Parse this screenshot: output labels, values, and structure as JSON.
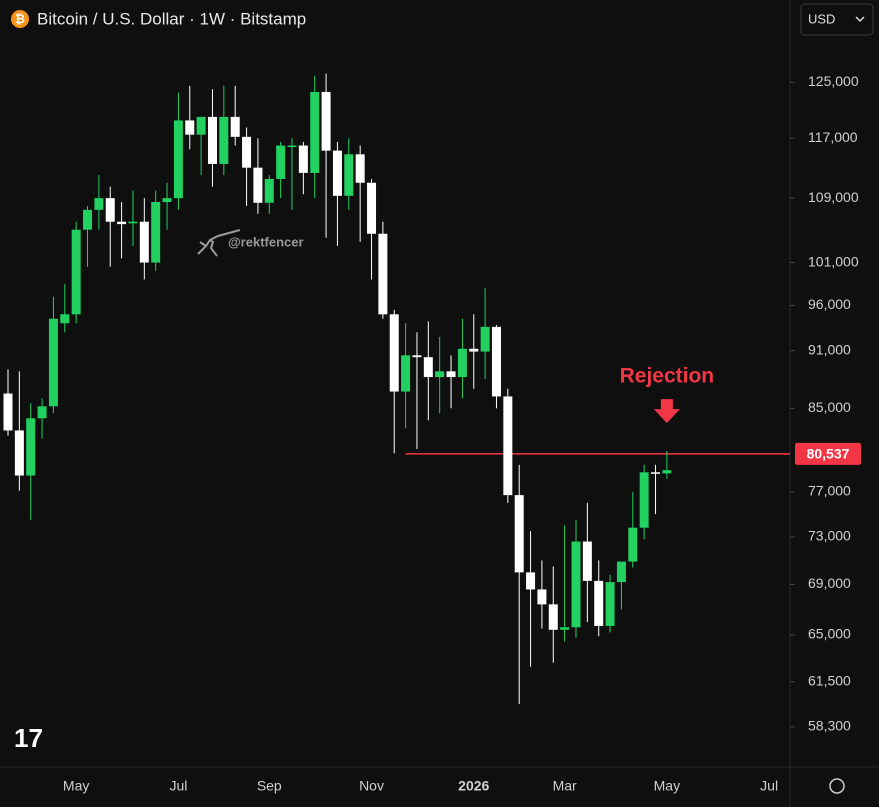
{
  "chart_data": {
    "type": "candlestick",
    "title": "Bitcoin / U.S. Dollar · 1W · Bitstamp",
    "currency": "USD",
    "watermark": "@rektfencer",
    "categories": [
      null,
      null,
      null,
      null,
      null,
      null,
      "May",
      null,
      null,
      null,
      null,
      null,
      null,
      null,
      null,
      "Jul",
      null,
      null,
      null,
      null,
      null,
      null,
      null,
      "Sep",
      null,
      null,
      null,
      null,
      null,
      null,
      null,
      null,
      "Nov",
      null,
      null,
      null,
      null,
      null,
      null,
      null,
      null,
      "2026",
      null,
      null,
      null,
      null,
      null,
      null,
      null,
      "Mar",
      null,
      null,
      null,
      null,
      null,
      null,
      null,
      null,
      "May",
      null,
      null,
      null,
      null,
      null,
      null,
      null,
      null,
      "Jul"
    ],
    "open": [
      86500,
      82800,
      78500,
      84000,
      85200,
      94000,
      95000,
      105000,
      107500,
      109000,
      106000,
      105800,
      106000,
      101000,
      108500,
      109000,
      119500,
      117500,
      120000,
      113500,
      120000,
      117200,
      113000,
      108400,
      111500,
      115800,
      116000,
      112300,
      123600,
      115300,
      109300,
      114800,
      111000,
      104500,
      95000,
      86700,
      90500,
      90300,
      88200,
      88800,
      88200,
      91200,
      90900,
      93600,
      86200,
      76700,
      70000,
      68600,
      67400,
      65400,
      65600,
      72600,
      69300,
      65700,
      69200,
      70900,
      73800,
      78800,
      78700,
      null,
      null,
      null,
      null,
      null,
      null,
      null,
      null,
      null
    ],
    "high": [
      89000,
      88800,
      85500,
      86000,
      97000,
      98500,
      106000,
      108000,
      112000,
      110500,
      108500,
      110000,
      109000,
      110000,
      111000,
      123500,
      124500,
      120000,
      124000,
      124500,
      124500,
      118500,
      117000,
      112000,
      116500,
      117000,
      116500,
      126000,
      126300,
      116500,
      117000,
      116000,
      111500,
      106000,
      95500,
      94000,
      93000,
      94200,
      92500,
      90500,
      94500,
      95000,
      98000,
      93800,
      87000,
      79500,
      73500,
      71000,
      70500,
      74000,
      74500,
      76000,
      71000,
      69800,
      70500,
      77000,
      79500,
      79500,
      80800,
      null,
      null,
      null,
      null,
      null,
      null,
      null,
      null,
      null
    ],
    "low": [
      82300,
      77100,
      74500,
      82000,
      84500,
      93000,
      94000,
      100500,
      105000,
      100500,
      101500,
      103000,
      99000,
      100000,
      105000,
      107500,
      115500,
      112000,
      110500,
      112000,
      116000,
      108000,
      107000,
      107000,
      109000,
      107500,
      109500,
      109000,
      104000,
      103000,
      107500,
      103500,
      99000,
      94500,
      80600,
      83000,
      81000,
      83800,
      84500,
      85000,
      86000,
      87000,
      88000,
      85000,
      76000,
      59900,
      62600,
      65500,
      62900,
      64500,
      64800,
      66000,
      64900,
      65200,
      67000,
      70400,
      72800,
      75000,
      78200,
      null,
      null,
      null,
      null,
      null,
      null,
      null,
      null,
      null
    ],
    "close": [
      82800,
      78500,
      84000,
      85200,
      94500,
      95000,
      105000,
      107500,
      109000,
      106000,
      105700,
      106000,
      101000,
      108500,
      109000,
      119500,
      117500,
      120000,
      113500,
      120000,
      117200,
      113000,
      108400,
      111500,
      116000,
      116000,
      112300,
      123600,
      115300,
      109300,
      114800,
      111000,
      104500,
      95000,
      86700,
      90500,
      90300,
      88200,
      88800,
      88200,
      91200,
      90900,
      93600,
      86200,
      76700,
      70000,
      68600,
      67400,
      65400,
      65600,
      72600,
      69300,
      65700,
      69200,
      70900,
      73800,
      78800,
      78700,
      79000,
      null,
      null,
      null,
      null,
      null,
      null,
      null,
      null,
      null
    ],
    "up_color": "#22d160",
    "down_color": "#ffffff",
    "log_scale": true,
    "ylim": [
      55600,
      137800
    ],
    "yticks": [
      {
        "value": 58300,
        "label": "58,300"
      },
      {
        "value": 61500,
        "label": "61,500"
      },
      {
        "value": 65000,
        "label": "65,000"
      },
      {
        "value": 69000,
        "label": "69,000"
      },
      {
        "value": 73000,
        "label": "73,000"
      },
      {
        "value": 77000,
        "label": "77,000"
      },
      {
        "value": 85000,
        "label": "85,000"
      },
      {
        "value": 91000,
        "label": "91,000"
      },
      {
        "value": 96000,
        "label": "96,000"
      },
      {
        "value": 101000,
        "label": "101,000"
      },
      {
        "value": 109000,
        "label": "109,000"
      },
      {
        "value": 117000,
        "label": "117,000"
      },
      {
        "value": 125000,
        "label": "125,000"
      }
    ],
    "price_line": {
      "value": 80537,
      "value_label": "80,537",
      "color": "#f23645"
    },
    "annotation": "Rejection"
  }
}
